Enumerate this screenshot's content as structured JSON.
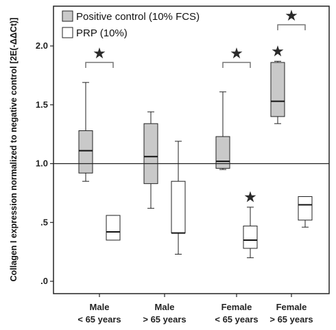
{
  "chart_data": {
    "type": "boxplot",
    "ylabel": "Collagen I expression normalized to negative control [2E(-ΔΔCt)]",
    "ylim": [
      -0.05,
      2.2
    ],
    "yticks": [
      {
        "value": 0.0,
        "label": ".0"
      },
      {
        "value": 0.5,
        "label": ".5"
      },
      {
        "value": 1.0,
        "label": "1.0"
      },
      {
        "value": 1.5,
        "label": "1.5"
      },
      {
        "value": 2.0,
        "label": "2.0"
      }
    ],
    "reference_line": 1.0,
    "grid": false,
    "legend_position": "top-left",
    "categories": [
      {
        "line1": "Male",
        "line2": "< 65 years"
      },
      {
        "line1": "Male",
        "line2": "> 65 years"
      },
      {
        "line1": "Female",
        "line2": "< 65 years"
      },
      {
        "line1": "Female",
        "line2": "> 65 years"
      }
    ],
    "series": [
      {
        "name": "Positive control (10% FCS)",
        "fill": "#c9c9c9",
        "boxes": [
          {
            "min": 0.85,
            "q1": 0.92,
            "median": 1.11,
            "q3": 1.28,
            "max": 1.69
          },
          {
            "min": 0.62,
            "q1": 0.83,
            "median": 1.06,
            "q3": 1.34,
            "max": 1.44
          },
          {
            "min": 0.95,
            "q1": 0.96,
            "median": 1.02,
            "q3": 1.23,
            "max": 1.61
          },
          {
            "min": 1.34,
            "q1": 1.4,
            "median": 1.53,
            "q3": 1.86,
            "max": 1.87
          }
        ]
      },
      {
        "name": "PRP (10%)",
        "fill": "#ffffff",
        "boxes": [
          {
            "min": 0.35,
            "q1": 0.35,
            "median": 0.42,
            "q3": 0.56,
            "max": 0.56
          },
          {
            "min": 0.23,
            "q1": 0.41,
            "median": 0.41,
            "q3": 0.85,
            "max": 1.19
          },
          {
            "min": 0.2,
            "q1": 0.28,
            "median": 0.35,
            "q3": 0.47,
            "max": 0.63
          },
          {
            "min": 0.46,
            "q1": 0.52,
            "median": 0.65,
            "q3": 0.72,
            "max": 0.72
          }
        ]
      }
    ],
    "annotations": [
      {
        "type": "bracket",
        "category": 0,
        "y": 1.86,
        "label": "★"
      },
      {
        "type": "bracket",
        "category": 2,
        "y": 1.86,
        "label": "★"
      },
      {
        "type": "bracket",
        "category": 3,
        "y": 2.18,
        "label": "★"
      },
      {
        "type": "star",
        "category": 2,
        "series": 1,
        "y": 0.72,
        "label": "★"
      },
      {
        "type": "star",
        "category": 3,
        "series": 0,
        "y": 1.96,
        "label": "★"
      }
    ]
  }
}
